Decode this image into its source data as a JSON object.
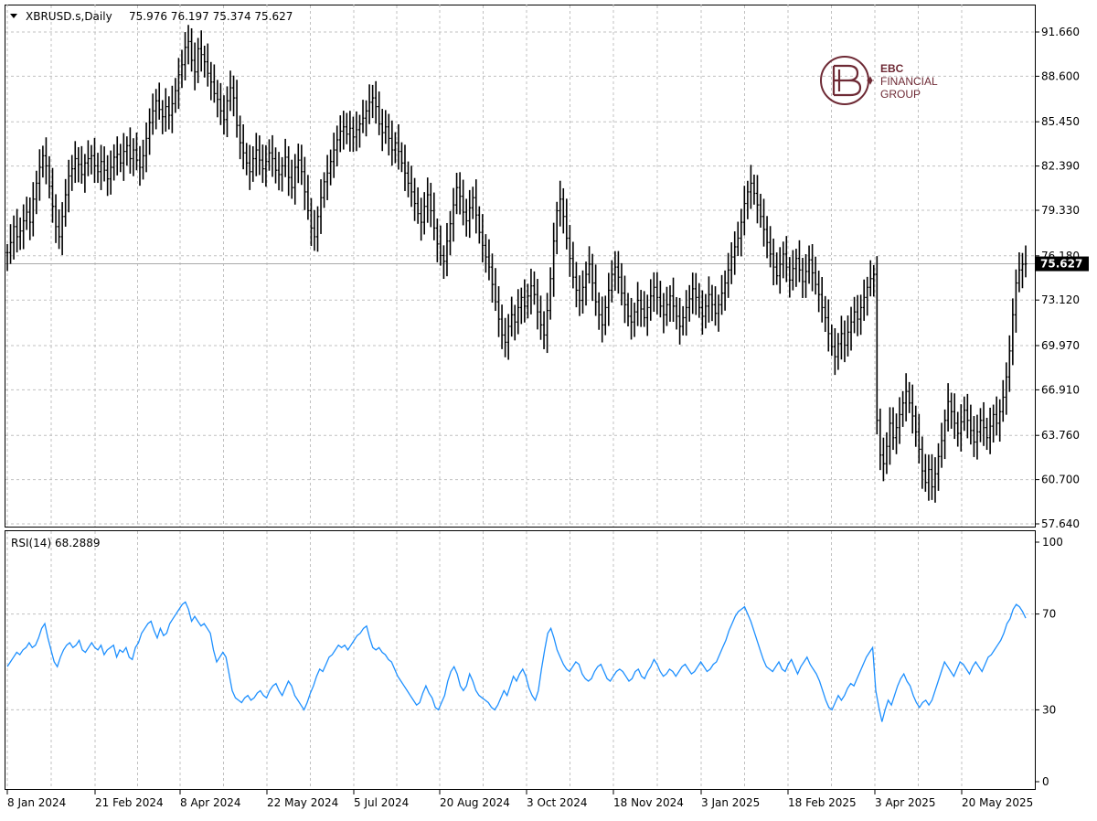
{
  "header": {
    "symbol": "XBRUSD.s,Daily",
    "ohlc": "75.976 76.197 75.374 75.627",
    "rsi_label": "RSI(14) 68.2889"
  },
  "logo": {
    "line1": "EBC",
    "line2": "FINANCIAL",
    "line3": "GROUP",
    "color": "#6e2a35"
  },
  "colors": {
    "bars": "#000000",
    "rsi_line": "#1e90ff",
    "grid": "#c0c0c0",
    "current_price_bg": "#000000",
    "current_price_text": "#ffffff"
  },
  "chart_data": [
    {
      "type": "bar",
      "subtype": "ohlc",
      "series": [
        {
          "name": "XBRUSD.s,Daily"
        }
      ],
      "y_ticks": [
        "91.660",
        "88.600",
        "85.450",
        "82.390",
        "79.330",
        "76.180",
        "73.120",
        "69.970",
        "66.910",
        "63.760",
        "60.700",
        "57.640"
      ],
      "ylim": [
        57.64,
        91.66
      ],
      "current_price": "75.627",
      "x_ticks": [
        "8 Jan 2024",
        "21 Feb 2024",
        "8 Apr 2024",
        "22 May 2024",
        "5 Jul 2024",
        "20 Aug 2024",
        "3 Oct 2024",
        "18 Nov 2024",
        "3 Jan 2025",
        "18 Feb 2025",
        "3 Apr 2025",
        "20 May 2025"
      ],
      "grid": true,
      "closes": [
        76.4,
        77.1,
        78.2,
        77.5,
        77.9,
        78.6,
        79.2,
        78.5,
        80.1,
        81.2,
        82.3,
        83.1,
        82.4,
        81.0,
        79.6,
        78.2,
        77.5,
        78.9,
        80.4,
        81.7,
        82.2,
        82.9,
        82.5,
        81.8,
        82.6,
        82.9,
        83.1,
        82.4,
        82.0,
        82.7,
        82.1,
        81.5,
        82.3,
        83.0,
        83.2,
        82.6,
        83.4,
        83.8,
        82.9,
        83.5,
        82.8,
        82.3,
        83.1,
        84.3,
        85.4,
        86.2,
        86.9,
        86.3,
        85.8,
        86.5,
        85.9,
        86.7,
        87.6,
        88.7,
        89.4,
        90.6,
        91.0,
        89.7,
        88.9,
        90.5,
        90.1,
        89.6,
        88.8,
        88.2,
        87.4,
        87.0,
        86.2,
        85.6,
        86.9,
        87.8,
        87.1,
        85.2,
        84.0,
        83.3,
        82.6,
        82.0,
        82.9,
        83.5,
        82.8,
        82.2,
        82.7,
        83.3,
        82.9,
        82.1,
        81.8,
        82.4,
        83.0,
        81.6,
        80.9,
        82.3,
        82.8,
        82.0,
        80.6,
        79.3,
        78.1,
        77.5,
        78.9,
        80.2,
        81.3,
        81.9,
        82.7,
        83.5,
        84.2,
        84.8,
        85.1,
        84.6,
        85.0,
        84.4,
        84.9,
        85.3,
        85.7,
        86.2,
        86.8,
        87.1,
        86.5,
        85.3,
        84.7,
        85.1,
        84.3,
        83.5,
        84.0,
        83.4,
        82.6,
        81.9,
        81.2,
        80.6,
        79.8,
        79.1,
        78.5,
        79.6,
        80.4,
        79.3,
        78.1,
        77.0,
        76.2,
        75.8,
        77.2,
        78.4,
        79.7,
        80.9,
        80.3,
        79.2,
        78.6,
        79.5,
        80.2,
        79.0,
        77.8,
        76.9,
        76.1,
        75.4,
        74.2,
        73.0,
        71.8,
        70.7,
        70.2,
        71.3,
        72.1,
        71.6,
        72.6,
        73.3,
        72.7,
        73.4,
        74.1,
        73.5,
        72.3,
        71.4,
        70.7,
        72.4,
        74.6,
        77.2,
        79.3,
        80.1,
        78.9,
        77.4,
        76.0,
        74.7,
        73.8,
        73.1,
        74.0,
        74.9,
        75.6,
        74.3,
        73.0,
        72.1,
        71.4,
        72.6,
        73.8,
        74.9,
        75.4,
        74.7,
        73.6,
        72.8,
        72.0,
        71.6,
        72.3,
        73.1,
        72.5,
        71.9,
        72.6,
        73.4,
        74.0,
        73.3,
        72.7,
        72.1,
        72.8,
        73.4,
        72.7,
        72.0,
        71.3,
        71.9,
        72.6,
        73.2,
        73.9,
        73.3,
        72.6,
        72.0,
        72.7,
        73.5,
        72.8,
        72.2,
        72.8,
        73.6,
        74.3,
        75.2,
        76.1,
        76.8,
        77.4,
        78.5,
        79.8,
        80.6,
        81.2,
        80.5,
        79.7,
        78.9,
        78.0,
        77.1,
        76.3,
        75.4,
        74.8,
        75.6,
        76.3,
        75.4,
        74.5,
        75.3,
        76.0,
        75.2,
        74.4,
        75.1,
        75.9,
        75.0,
        74.2,
        73.5,
        72.6,
        71.9,
        70.8,
        69.9,
        69.2,
        70.1,
        70.8,
        70.0,
        70.9,
        71.6,
        72.3,
        71.8,
        72.6,
        73.3,
        74.0,
        74.6,
        74.9,
        64.8,
        62.4,
        61.8,
        63.0,
        64.6,
        63.6,
        64.3,
        65.2,
        66.0,
        66.8,
        66.0,
        65.1,
        64.0,
        62.8,
        61.3,
        60.5,
        61.4,
        60.2,
        61.1,
        62.3,
        63.4,
        64.8,
        66.1,
        65.4,
        64.6,
        63.9,
        64.7,
        65.5,
        64.8,
        64.1,
        63.3,
        64.0,
        64.8,
        64.3,
        63.6,
        64.4,
        65.2,
        64.6,
        65.4,
        66.4,
        67.8,
        69.6,
        72.1,
        74.3,
        75.2,
        75.6,
        75.627
      ],
      "hl_spread": 1.7,
      "annotations": [
        "75.627"
      ]
    },
    {
      "type": "line",
      "series": [
        {
          "name": "RSI(14) 68.2889"
        }
      ],
      "y_ticks": [
        "100",
        "70",
        "30",
        "0"
      ],
      "ylim": [
        0,
        100
      ],
      "grid": true,
      "values": [
        48,
        50,
        52,
        54,
        53,
        55,
        56,
        58,
        56,
        57,
        60,
        64,
        66,
        60,
        55,
        50,
        48,
        52,
        55,
        57,
        58,
        56,
        57,
        59,
        55,
        54,
        56,
        58,
        56,
        55,
        57,
        53,
        55,
        56,
        57,
        52,
        55,
        54,
        56,
        52,
        51,
        56,
        58,
        62,
        64,
        66,
        67,
        63,
        60,
        64,
        61,
        62,
        66,
        68,
        70,
        72,
        74,
        75,
        72,
        67,
        69,
        67,
        65,
        66,
        64,
        62,
        55,
        50,
        52,
        54,
        52,
        45,
        38,
        35,
        34,
        33,
        35,
        36,
        34,
        35,
        37,
        38,
        36,
        35,
        38,
        40,
        41,
        38,
        36,
        39,
        42,
        40,
        36,
        34,
        32,
        30,
        33,
        37,
        40,
        44,
        47,
        46,
        49,
        52,
        53,
        55,
        57,
        56,
        57,
        55,
        57,
        59,
        61,
        62,
        64,
        65,
        60,
        56,
        55,
        56,
        54,
        53,
        51,
        50,
        47,
        44,
        42,
        40,
        38,
        36,
        34,
        32,
        33,
        37,
        40,
        37,
        35,
        31,
        30,
        33,
        36,
        42,
        46,
        48,
        45,
        40,
        38,
        40,
        45,
        42,
        38,
        36,
        35,
        34,
        33,
        31,
        30,
        32,
        35,
        38,
        36,
        40,
        44,
        42,
        45,
        47,
        44,
        39,
        36,
        34,
        38,
        47,
        55,
        62,
        64,
        60,
        55,
        52,
        49,
        47,
        46,
        48,
        50,
        49,
        45,
        43,
        42,
        43,
        46,
        48,
        49,
        46,
        43,
        42,
        44,
        46,
        47,
        46,
        44,
        42,
        43,
        46,
        47,
        44,
        43,
        46,
        48,
        51,
        49,
        46,
        44,
        45,
        47,
        46,
        44,
        46,
        48,
        49,
        47,
        45,
        46,
        48,
        50,
        48,
        46,
        47,
        49,
        50,
        53,
        56,
        59,
        63,
        66,
        69,
        71,
        72,
        73,
        70,
        67,
        63,
        59,
        55,
        51,
        48,
        47,
        46,
        48,
        50,
        47,
        46,
        49,
        51,
        48,
        45,
        48,
        50,
        52,
        49,
        47,
        45,
        42,
        38,
        34,
        31,
        30,
        33,
        36,
        34,
        36,
        39,
        41,
        40,
        43,
        46,
        49,
        52,
        54,
        56,
        38,
        31,
        25,
        30,
        34,
        32,
        36,
        40,
        43,
        45,
        42,
        40,
        36,
        33,
        31,
        33,
        34,
        32,
        34,
        38,
        42,
        46,
        50,
        48,
        46,
        44,
        47,
        50,
        49,
        47,
        45,
        48,
        50,
        48,
        46,
        49,
        52,
        53,
        55,
        57,
        59,
        62,
        66,
        68,
        72,
        74,
        73,
        71,
        68.29
      ]
    }
  ]
}
